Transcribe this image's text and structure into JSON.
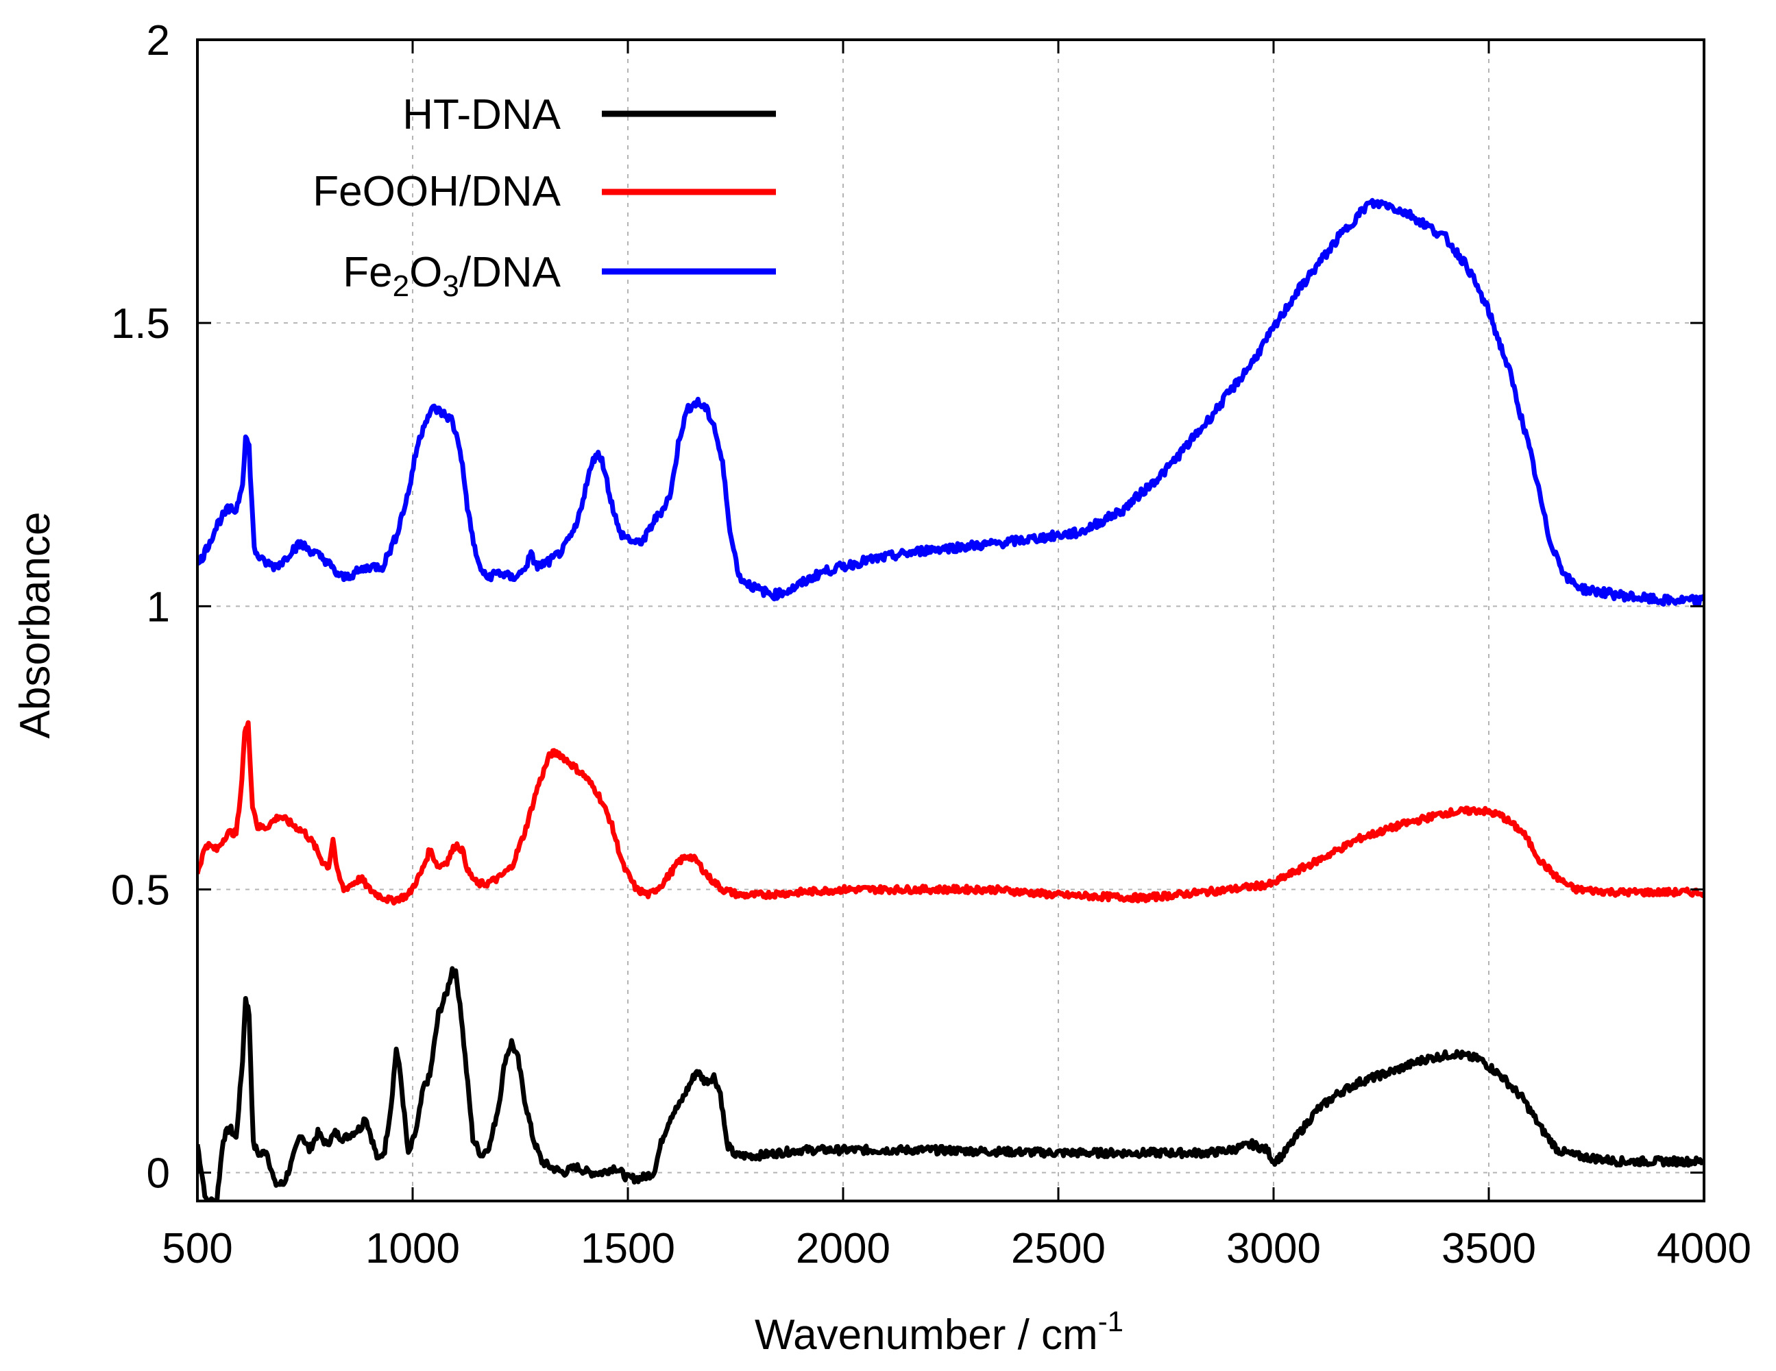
{
  "chart_data": {
    "type": "line",
    "xlabel": "Wavenumber / cm",
    "xlabel_sup": "-1",
    "ylabel": "Absorbance",
    "xlim": [
      500,
      4000
    ],
    "ylim": [
      -0.05,
      2.0
    ],
    "xticks": [
      500,
      1000,
      1500,
      2000,
      2500,
      3000,
      3500,
      4000
    ],
    "xtick_labels": [
      "500",
      "1000",
      "1500",
      "2000",
      "2500",
      "3000",
      "3500",
      "4000"
    ],
    "yticks": [
      0,
      0.5,
      1,
      1.5,
      2
    ],
    "ytick_labels": [
      "0",
      "0.5",
      "1",
      "1.5",
      "2"
    ],
    "grid": true,
    "legend_position": "top-left",
    "series": [
      {
        "name": "HT-DNA",
        "legend": {
          "main": "HT-DNA"
        },
        "color": "#000000",
        "noise": 0.007,
        "points": [
          [
            500,
            0.05
          ],
          [
            520,
            -0.05
          ],
          [
            545,
            -0.05
          ],
          [
            560,
            0.06
          ],
          [
            575,
            0.08
          ],
          [
            590,
            0.06
          ],
          [
            605,
            0.2
          ],
          [
            612,
            0.31
          ],
          [
            620,
            0.28
          ],
          [
            630,
            0.05
          ],
          [
            645,
            0.03
          ],
          [
            660,
            0.04
          ],
          [
            680,
            -0.02
          ],
          [
            700,
            -0.02
          ],
          [
            720,
            0.02
          ],
          [
            740,
            0.07
          ],
          [
            760,
            0.04
          ],
          [
            780,
            0.07
          ],
          [
            800,
            0.05
          ],
          [
            820,
            0.07
          ],
          [
            840,
            0.06
          ],
          [
            860,
            0.07
          ],
          [
            880,
            0.08
          ],
          [
            890,
            0.1
          ],
          [
            905,
            0.06
          ],
          [
            920,
            0.02
          ],
          [
            935,
            0.04
          ],
          [
            950,
            0.12
          ],
          [
            962,
            0.22
          ],
          [
            972,
            0.17
          ],
          [
            990,
            0.03
          ],
          [
            1010,
            0.08
          ],
          [
            1025,
            0.15
          ],
          [
            1040,
            0.17
          ],
          [
            1060,
            0.28
          ],
          [
            1080,
            0.32
          ],
          [
            1092,
            0.36
          ],
          [
            1100,
            0.35
          ],
          [
            1110,
            0.3
          ],
          [
            1125,
            0.18
          ],
          [
            1140,
            0.06
          ],
          [
            1160,
            0.03
          ],
          [
            1180,
            0.05
          ],
          [
            1200,
            0.12
          ],
          [
            1215,
            0.2
          ],
          [
            1230,
            0.23
          ],
          [
            1245,
            0.2
          ],
          [
            1260,
            0.13
          ],
          [
            1280,
            0.06
          ],
          [
            1300,
            0.02
          ],
          [
            1320,
            0.01
          ],
          [
            1350,
            0.0
          ],
          [
            1380,
            0.01
          ],
          [
            1410,
            0.0
          ],
          [
            1440,
            0.0
          ],
          [
            1470,
            0.01
          ],
          [
            1500,
            -0.01
          ],
          [
            1530,
            -0.01
          ],
          [
            1560,
            0.0
          ],
          [
            1580,
            0.06
          ],
          [
            1600,
            0.1
          ],
          [
            1620,
            0.12
          ],
          [
            1640,
            0.15
          ],
          [
            1660,
            0.18
          ],
          [
            1680,
            0.16
          ],
          [
            1700,
            0.17
          ],
          [
            1715,
            0.14
          ],
          [
            1730,
            0.05
          ],
          [
            1750,
            0.03
          ],
          [
            1800,
            0.03
          ],
          [
            1900,
            0.04
          ],
          [
            2000,
            0.04
          ],
          [
            2200,
            0.04
          ],
          [
            2500,
            0.035
          ],
          [
            2700,
            0.035
          ],
          [
            2850,
            0.035
          ],
          [
            2900,
            0.04
          ],
          [
            2950,
            0.05
          ],
          [
            2985,
            0.04
          ],
          [
            3000,
            0.02
          ],
          [
            3020,
            0.03
          ],
          [
            3060,
            0.07
          ],
          [
            3100,
            0.11
          ],
          [
            3150,
            0.14
          ],
          [
            3200,
            0.16
          ],
          [
            3280,
            0.18
          ],
          [
            3350,
            0.2
          ],
          [
            3420,
            0.21
          ],
          [
            3480,
            0.2
          ],
          [
            3530,
            0.17
          ],
          [
            3580,
            0.13
          ],
          [
            3620,
            0.08
          ],
          [
            3660,
            0.04
          ],
          [
            3700,
            0.03
          ],
          [
            3800,
            0.02
          ],
          [
            3900,
            0.02
          ],
          [
            4000,
            0.02
          ]
        ]
      },
      {
        "name": "FeOOH/DNA",
        "legend": {
          "main": "FeOOH/DNA"
        },
        "color": "#ff0000",
        "noise": 0.006,
        "points": [
          [
            500,
            0.53
          ],
          [
            520,
            0.58
          ],
          [
            545,
            0.57
          ],
          [
            570,
            0.6
          ],
          [
            590,
            0.6
          ],
          [
            600,
            0.66
          ],
          [
            610,
            0.78
          ],
          [
            618,
            0.79
          ],
          [
            628,
            0.65
          ],
          [
            640,
            0.61
          ],
          [
            660,
            0.61
          ],
          [
            690,
            0.63
          ],
          [
            710,
            0.62
          ],
          [
            730,
            0.61
          ],
          [
            750,
            0.6
          ],
          [
            770,
            0.58
          ],
          [
            790,
            0.55
          ],
          [
            805,
            0.54
          ],
          [
            815,
            0.59
          ],
          [
            825,
            0.53
          ],
          [
            840,
            0.5
          ],
          [
            860,
            0.51
          ],
          [
            880,
            0.52
          ],
          [
            900,
            0.5
          ],
          [
            920,
            0.49
          ],
          [
            950,
            0.48
          ],
          [
            990,
            0.49
          ],
          [
            1020,
            0.53
          ],
          [
            1040,
            0.57
          ],
          [
            1060,
            0.54
          ],
          [
            1080,
            0.55
          ],
          [
            1100,
            0.58
          ],
          [
            1115,
            0.57
          ],
          [
            1130,
            0.53
          ],
          [
            1150,
            0.51
          ],
          [
            1170,
            0.51
          ],
          [
            1200,
            0.52
          ],
          [
            1230,
            0.54
          ],
          [
            1260,
            0.6
          ],
          [
            1290,
            0.68
          ],
          [
            1320,
            0.74
          ],
          [
            1340,
            0.74
          ],
          [
            1370,
            0.72
          ],
          [
            1400,
            0.7
          ],
          [
            1430,
            0.67
          ],
          [
            1460,
            0.62
          ],
          [
            1490,
            0.54
          ],
          [
            1520,
            0.5
          ],
          [
            1550,
            0.49
          ],
          [
            1580,
            0.51
          ],
          [
            1600,
            0.53
          ],
          [
            1620,
            0.55
          ],
          [
            1640,
            0.56
          ],
          [
            1660,
            0.55
          ],
          [
            1690,
            0.52
          ],
          [
            1720,
            0.5
          ],
          [
            1760,
            0.49
          ],
          [
            1800,
            0.49
          ],
          [
            2000,
            0.5
          ],
          [
            2200,
            0.5
          ],
          [
            2350,
            0.5
          ],
          [
            2500,
            0.49
          ],
          [
            2700,
            0.485
          ],
          [
            2900,
            0.5
          ],
          [
            3000,
            0.51
          ],
          [
            3020,
            0.52
          ],
          [
            3100,
            0.55
          ],
          [
            3200,
            0.59
          ],
          [
            3300,
            0.615
          ],
          [
            3400,
            0.635
          ],
          [
            3480,
            0.64
          ],
          [
            3530,
            0.63
          ],
          [
            3580,
            0.6
          ],
          [
            3620,
            0.55
          ],
          [
            3660,
            0.52
          ],
          [
            3700,
            0.5
          ],
          [
            3800,
            0.495
          ],
          [
            3900,
            0.495
          ],
          [
            4000,
            0.495
          ]
        ]
      },
      {
        "name": "Fe2O3/DNA",
        "legend": {
          "pre": "Fe",
          "sub1": "2",
          "mid": "O",
          "sub2": "3",
          "post": "/DNA"
        },
        "color": "#0000ff",
        "noise": 0.008,
        "points": [
          [
            500,
            1.07
          ],
          [
            520,
            1.1
          ],
          [
            550,
            1.15
          ],
          [
            570,
            1.17
          ],
          [
            590,
            1.17
          ],
          [
            605,
            1.22
          ],
          [
            612,
            1.3
          ],
          [
            620,
            1.28
          ],
          [
            632,
            1.1
          ],
          [
            650,
            1.08
          ],
          [
            680,
            1.07
          ],
          [
            700,
            1.08
          ],
          [
            720,
            1.1
          ],
          [
            740,
            1.11
          ],
          [
            760,
            1.1
          ],
          [
            780,
            1.09
          ],
          [
            800,
            1.08
          ],
          [
            820,
            1.06
          ],
          [
            840,
            1.05
          ],
          [
            870,
            1.06
          ],
          [
            900,
            1.07
          ],
          [
            930,
            1.07
          ],
          [
            960,
            1.12
          ],
          [
            990,
            1.2
          ],
          [
            1010,
            1.28
          ],
          [
            1030,
            1.33
          ],
          [
            1050,
            1.35
          ],
          [
            1070,
            1.34
          ],
          [
            1090,
            1.33
          ],
          [
            1110,
            1.28
          ],
          [
            1130,
            1.16
          ],
          [
            1150,
            1.08
          ],
          [
            1170,
            1.05
          ],
          [
            1200,
            1.06
          ],
          [
            1230,
            1.05
          ],
          [
            1255,
            1.06
          ],
          [
            1275,
            1.09
          ],
          [
            1290,
            1.07
          ],
          [
            1320,
            1.08
          ],
          [
            1350,
            1.1
          ],
          [
            1380,
            1.14
          ],
          [
            1405,
            1.22
          ],
          [
            1425,
            1.27
          ],
          [
            1440,
            1.26
          ],
          [
            1460,
            1.19
          ],
          [
            1480,
            1.13
          ],
          [
            1500,
            1.12
          ],
          [
            1520,
            1.11
          ],
          [
            1540,
            1.12
          ],
          [
            1560,
            1.15
          ],
          [
            1580,
            1.17
          ],
          [
            1600,
            1.2
          ],
          [
            1620,
            1.3
          ],
          [
            1640,
            1.35
          ],
          [
            1660,
            1.36
          ],
          [
            1680,
            1.35
          ],
          [
            1700,
            1.32
          ],
          [
            1720,
            1.25
          ],
          [
            1740,
            1.12
          ],
          [
            1760,
            1.05
          ],
          [
            1800,
            1.03
          ],
          [
            1840,
            1.02
          ],
          [
            1880,
            1.03
          ],
          [
            1950,
            1.06
          ],
          [
            2050,
            1.08
          ],
          [
            2200,
            1.1
          ],
          [
            2350,
            1.11
          ],
          [
            2450,
            1.12
          ],
          [
            2550,
            1.13
          ],
          [
            2650,
            1.17
          ],
          [
            2750,
            1.24
          ],
          [
            2850,
            1.33
          ],
          [
            2950,
            1.43
          ],
          [
            3050,
            1.55
          ],
          [
            3150,
            1.65
          ],
          [
            3220,
            1.71
          ],
          [
            3260,
            1.71
          ],
          [
            3320,
            1.69
          ],
          [
            3400,
            1.65
          ],
          [
            3450,
            1.6
          ],
          [
            3500,
            1.52
          ],
          [
            3550,
            1.41
          ],
          [
            3600,
            1.26
          ],
          [
            3640,
            1.12
          ],
          [
            3680,
            1.05
          ],
          [
            3720,
            1.03
          ],
          [
            3800,
            1.02
          ],
          [
            3900,
            1.01
          ],
          [
            4000,
            1.01
          ]
        ]
      }
    ]
  }
}
